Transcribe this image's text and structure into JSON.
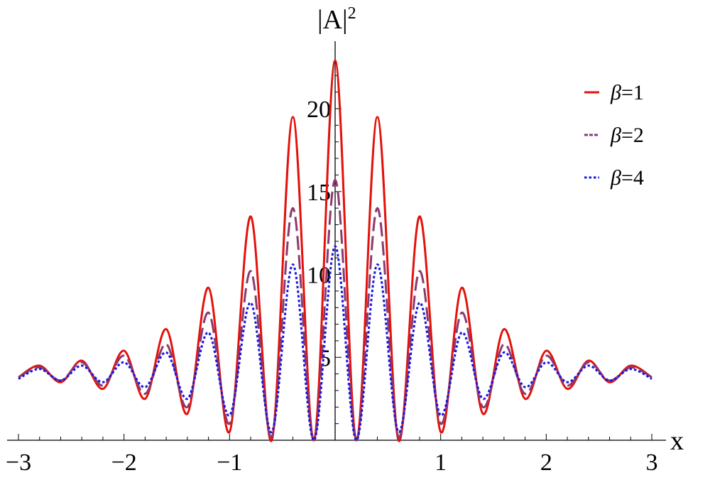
{
  "chart_data": {
    "type": "line",
    "title": "",
    "xlabel": "x",
    "ylabel": "|A|",
    "ylabel_superscript": "2",
    "xlim": [
      -3,
      3
    ],
    "ylim": [
      0,
      23
    ],
    "xticks": [
      -3,
      -2,
      -1,
      1,
      2,
      3
    ],
    "xtick_labels": [
      "−3",
      "−2",
      "−1",
      "1",
      "2",
      "3"
    ],
    "yticks": [
      5,
      10,
      15,
      20
    ],
    "ytick_labels": [
      "5",
      "10",
      "15",
      "20"
    ],
    "grid": false,
    "legend_position": "top-right",
    "x": [
      -3.0,
      -2.8,
      -2.6,
      -2.4,
      -2.2,
      -2.0,
      -1.8,
      -1.6,
      -1.4,
      -1.2,
      -1.0,
      -0.8,
      -0.6,
      -0.4,
      -0.2,
      0.0,
      0.2,
      0.4,
      0.6,
      0.8,
      1.0,
      1.2,
      1.4,
      1.6,
      1.8,
      2.0,
      2.2,
      2.4,
      2.6,
      2.8,
      3.0
    ],
    "series": [
      {
        "name": "β=1",
        "legend_symbol": "β",
        "legend_value": "=1",
        "color": "#e3120b",
        "dash": "solid",
        "values": [
          3.8,
          4.5,
          3.5,
          4.8,
          3.1,
          5.4,
          2.5,
          6.7,
          1.6,
          9.2,
          0.5,
          13.5,
          0.0,
          19.5,
          0.0,
          22.9,
          0.0,
          19.5,
          0.0,
          13.5,
          0.5,
          9.2,
          1.6,
          6.7,
          2.5,
          5.4,
          3.1,
          4.8,
          3.5,
          4.5,
          3.8
        ]
      },
      {
        "name": "β=2",
        "legend_symbol": "β",
        "legend_value": "=2",
        "color": "#8b3a70",
        "dash": "long-dash",
        "values": [
          3.8,
          4.4,
          3.6,
          4.7,
          3.3,
          5.1,
          2.8,
          5.8,
          2.0,
          7.7,
          1.0,
          10.2,
          0.2,
          14.0,
          0.0,
          15.7,
          0.0,
          14.0,
          0.2,
          10.2,
          1.0,
          7.7,
          2.0,
          5.8,
          2.8,
          5.1,
          3.3,
          4.7,
          3.6,
          4.4,
          3.8
        ]
      },
      {
        "name": "β=4",
        "legend_symbol": "β",
        "legend_value": "=4",
        "color": "#1818e0",
        "dash": "dotted",
        "values": [
          3.7,
          4.3,
          3.6,
          4.5,
          3.5,
          4.7,
          3.2,
          5.3,
          2.5,
          6.5,
          1.5,
          8.3,
          0.5,
          10.6,
          0.0,
          11.7,
          0.0,
          10.6,
          0.5,
          8.3,
          1.5,
          6.5,
          2.5,
          5.3,
          3.2,
          4.7,
          3.5,
          4.5,
          3.6,
          4.3,
          3.7
        ]
      }
    ]
  }
}
